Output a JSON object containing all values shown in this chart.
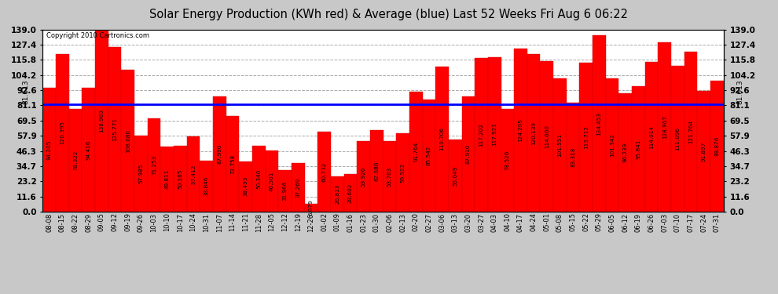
{
  "title": "Solar Energy Production (KWh red) & Average (blue) Last 52 Weeks Fri Aug 6 06:22",
  "copyright": "Copyright 2010 Cartronics.com",
  "average_line": 81.613,
  "average_label": "81.613",
  "bar_color": "#ff0000",
  "avg_line_color": "#0000ff",
  "background_color": "#c8c8c8",
  "plot_bg_color": "#ffffff",
  "ylim": [
    0,
    139.0
  ],
  "yticks": [
    0.0,
    11.6,
    23.2,
    34.7,
    46.3,
    57.9,
    69.5,
    81.1,
    92.6,
    104.2,
    115.8,
    127.4,
    139.0
  ],
  "categories": [
    "08-08",
    "08-15",
    "08-22",
    "08-29",
    "09-05",
    "09-12",
    "09-19",
    "09-26",
    "10-03",
    "10-10",
    "10-17",
    "10-24",
    "10-31",
    "11-07",
    "11-14",
    "11-21",
    "11-28",
    "12-05",
    "12-12",
    "12-19",
    "12-26",
    "01-02",
    "01-09",
    "01-16",
    "01-23",
    "01-30",
    "02-06",
    "02-13",
    "02-20",
    "02-27",
    "03-06",
    "03-13",
    "03-20",
    "03-27",
    "04-03",
    "04-10",
    "04-17",
    "04-24",
    "05-01",
    "05-08",
    "05-15",
    "05-22",
    "05-29",
    "06-05",
    "06-12",
    "06-19",
    "06-26",
    "07-03",
    "07-10",
    "07-17",
    "07-24",
    "07-31"
  ],
  "values": [
    94.205,
    120.395,
    78.322,
    94.416,
    138.963,
    125.771,
    108.08,
    57.985,
    71.253,
    49.811,
    50.165,
    57.412,
    38.846,
    87.99,
    72.758,
    38.493,
    50.34,
    46.501,
    31.966,
    37.269,
    6.079,
    60.732,
    26.813,
    28.602,
    53.926,
    62.08,
    53.703,
    59.522,
    91.764,
    85.542,
    110.706,
    55.049,
    87.91,
    117.202,
    117.921,
    78.526,
    124.205,
    120.139,
    114.6,
    101.551,
    83.318,
    113.712,
    134.453,
    101.342,
    90.239,
    95.841,
    114.014,
    128.907,
    111.096,
    121.764,
    91.897,
    99.876
  ]
}
